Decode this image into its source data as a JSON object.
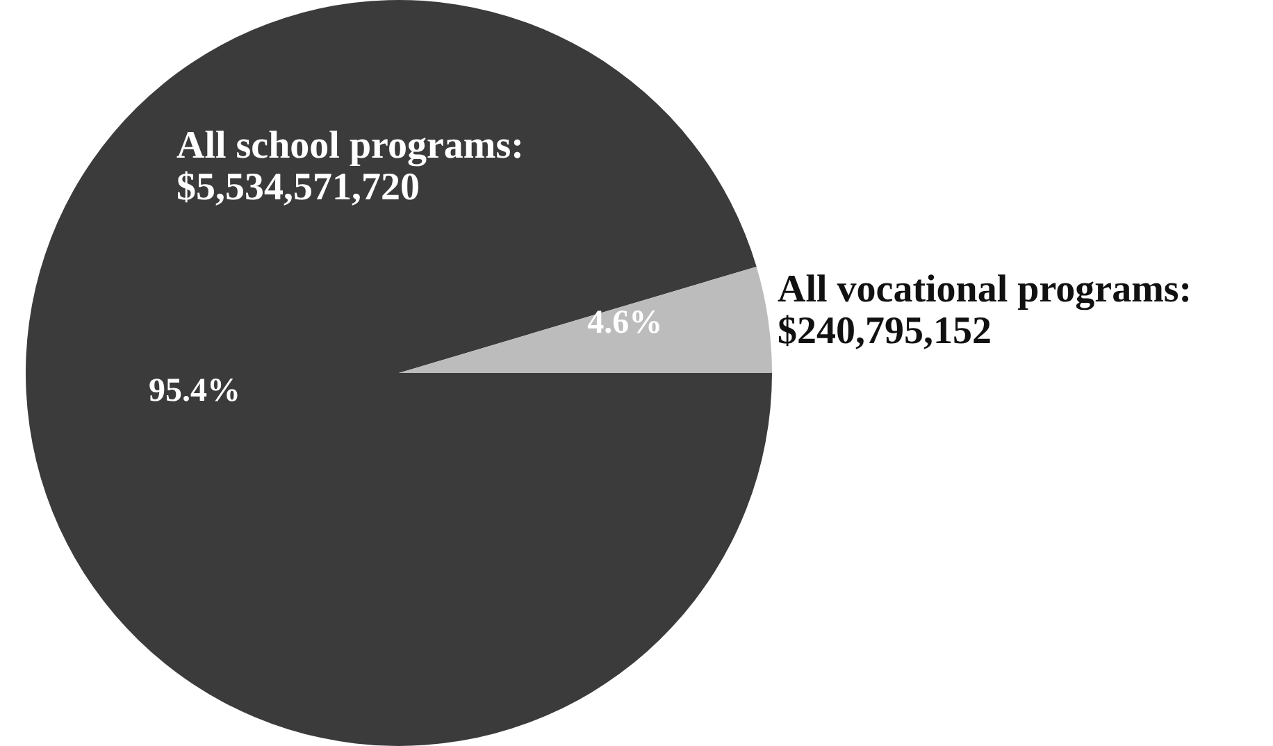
{
  "chart_data": {
    "type": "pie",
    "categories": [
      "All school programs:\n$5,534,571,720",
      "All vocational programs:\n$240,795,152"
    ],
    "values": [
      95.4,
      4.6
    ],
    "colors": [
      "#3b3b3b",
      "#bcbcbc"
    ],
    "value_labels": [
      "95.4%",
      "4.6%"
    ]
  }
}
